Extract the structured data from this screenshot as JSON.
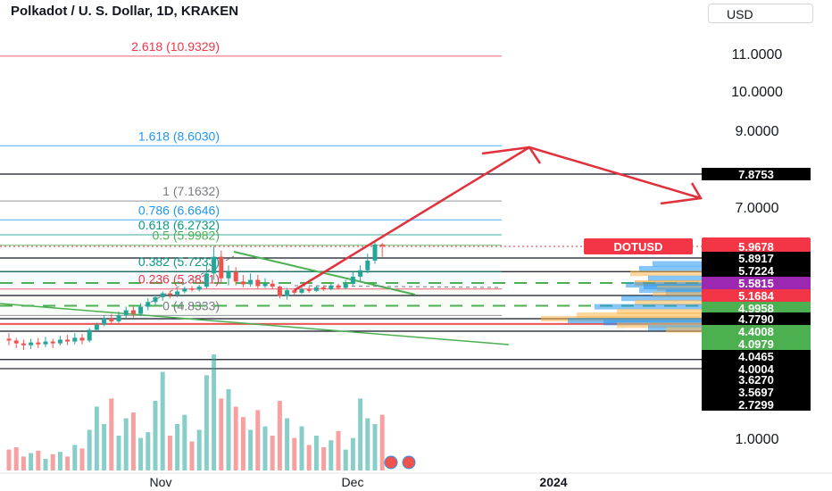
{
  "header": {
    "title": "Polkadot / U. S. Dollar, 1D, KRAKEN",
    "currency_button": "USD"
  },
  "colors": {
    "up": "#26a69a",
    "down": "#ef5350",
    "fib_red": "#f23645",
    "fib_blue": "#2196f3",
    "fib_green": "#089981",
    "fib_gray": "#787b86",
    "trend_green": "#4caf50",
    "arrow_red": "#e0313d"
  },
  "chart_data": {
    "type": "candlestick",
    "symbol": "DOTUSD",
    "price_axis_ticks": [
      "11.0000",
      "10.0000",
      "9.0000",
      "7.0000",
      "1.0000"
    ],
    "time_axis_ticks": [
      "Nov",
      "Dec",
      "2024"
    ],
    "last_price": {
      "label": "DOTUSD",
      "value": "5.9678"
    },
    "fib_levels": [
      {
        "ratio": "2.618",
        "price": "10.9329",
        "label": "2.618 (10.9329)",
        "color": "#f23645"
      },
      {
        "ratio": "1.618",
        "price": "8.6030",
        "label": "1.618 (8.6030)",
        "color": "#2196f3"
      },
      {
        "ratio": "1",
        "price": "7.1632",
        "label": "1 (7.1632)",
        "color": "#787b86"
      },
      {
        "ratio": "0.786",
        "price": "6.6646",
        "label": "0.786 (6.6646)",
        "color": "#2196f3"
      },
      {
        "ratio": "0.618",
        "price": "6.2732",
        "label": "0.618 (6.2732)",
        "color": "#089981"
      },
      {
        "ratio": "0.5",
        "price": "5.9982",
        "label": "0.5 (5.9982)",
        "color": "#4caf50"
      },
      {
        "ratio": "0.382",
        "price": "5.7233",
        "label": "0.382 (5.7233)",
        "color": "#089981"
      },
      {
        "ratio": "0.236",
        "price": "5.3831",
        "label": "0.236 (5.3831)",
        "color": "#f23645"
      },
      {
        "ratio": "0",
        "price": "4.8333",
        "label": "0 (4.8333)",
        "color": "#787b86"
      }
    ],
    "price_tags": [
      {
        "value": "7.8753",
        "bg": "#000000"
      },
      {
        "value": "5.8917",
        "bg": "#000000"
      },
      {
        "value": "5.7224",
        "bg": "#000000"
      },
      {
        "value": "5.5815",
        "bg": "#9c27b0"
      },
      {
        "value": "5.1684",
        "bg": "#f23645"
      },
      {
        "value": "4.9958",
        "bg": "#4caf50"
      },
      {
        "value": "4.7790",
        "bg": "#000000"
      },
      {
        "value": "4.4008",
        "bg": "#4caf50"
      },
      {
        "value": "4.0979",
        "bg": "#4caf50"
      },
      {
        "value": "4.0465",
        "bg": "#000000"
      },
      {
        "value": "4.0004",
        "bg": "#000000"
      },
      {
        "value": "3.6270",
        "bg": "#000000"
      },
      {
        "value": "3.5697",
        "bg": "#000000"
      },
      {
        "value": "2.7299",
        "bg": "#000000"
      }
    ],
    "candles": [
      [
        4.32,
        4.3,
        4.38,
        4.25
      ],
      [
        4.3,
        4.27,
        4.33,
        4.22
      ],
      [
        4.27,
        4.25,
        4.31,
        4.2
      ],
      [
        4.25,
        4.28,
        4.32,
        4.21
      ],
      [
        4.28,
        4.26,
        4.33,
        4.22
      ],
      [
        4.26,
        4.29,
        4.34,
        4.23
      ],
      [
        4.29,
        4.27,
        4.32,
        4.22
      ],
      [
        4.27,
        4.31,
        4.35,
        4.25
      ],
      [
        4.31,
        4.29,
        4.36,
        4.25
      ],
      [
        4.29,
        4.33,
        4.38,
        4.26
      ],
      [
        4.33,
        4.3,
        4.37,
        4.26
      ],
      [
        4.3,
        4.44,
        4.5,
        4.28
      ],
      [
        4.44,
        4.6,
        4.66,
        4.4
      ],
      [
        4.6,
        4.78,
        4.84,
        4.55
      ],
      [
        4.78,
        4.7,
        4.86,
        4.62
      ],
      [
        4.7,
        4.84,
        4.9,
        4.65
      ],
      [
        4.84,
        4.92,
        4.98,
        4.78
      ],
      [
        4.92,
        4.86,
        4.98,
        4.8
      ],
      [
        4.86,
        4.98,
        5.04,
        4.82
      ],
      [
        4.98,
        5.06,
        5.12,
        4.92
      ],
      [
        5.06,
        5.14,
        5.2,
        5.0
      ],
      [
        5.14,
        5.24,
        5.3,
        5.08
      ],
      [
        5.24,
        5.2,
        5.32,
        5.12
      ],
      [
        5.2,
        5.3,
        5.36,
        5.14
      ],
      [
        5.3,
        5.4,
        5.46,
        5.24
      ],
      [
        5.4,
        5.36,
        5.48,
        5.3
      ],
      [
        5.36,
        5.46,
        5.52,
        5.3
      ],
      [
        5.46,
        5.7,
        5.8,
        5.4
      ],
      [
        5.7,
        5.9,
        5.98,
        5.62
      ],
      [
        5.9,
        5.64,
        5.94,
        5.56
      ],
      [
        5.64,
        5.72,
        5.8,
        5.5
      ],
      [
        5.72,
        5.6,
        5.78,
        5.5
      ],
      [
        5.6,
        5.54,
        5.68,
        5.44
      ],
      [
        5.54,
        5.62,
        5.7,
        5.46
      ],
      [
        5.62,
        5.48,
        5.68,
        5.4
      ],
      [
        5.48,
        5.56,
        5.64,
        5.42
      ],
      [
        5.56,
        5.46,
        5.62,
        5.38
      ],
      [
        5.46,
        5.16,
        5.5,
        5.12
      ],
      [
        5.16,
        5.34,
        5.42,
        5.1
      ],
      [
        5.34,
        5.26,
        5.4,
        5.2
      ],
      [
        5.26,
        5.38,
        5.44,
        5.22
      ],
      [
        5.38,
        5.32,
        5.46,
        5.26
      ],
      [
        5.32,
        5.44,
        5.5,
        5.28
      ],
      [
        5.44,
        5.38,
        5.5,
        5.32
      ],
      [
        5.38,
        5.5,
        5.56,
        5.34
      ],
      [
        5.5,
        5.42,
        5.56,
        5.36
      ],
      [
        5.42,
        5.56,
        5.62,
        5.38
      ],
      [
        5.56,
        5.66,
        5.72,
        5.5
      ],
      [
        5.66,
        5.74,
        5.8,
        5.6
      ],
      [
        5.74,
        5.86,
        5.92,
        5.7
      ],
      [
        5.86,
        6.02,
        6.08,
        5.82
      ],
      [
        6.02,
        5.97,
        6.06,
        5.9
      ]
    ],
    "volumes": [
      0.18,
      0.2,
      0.12,
      0.15,
      0.17,
      0.1,
      0.14,
      0.16,
      0.12,
      0.22,
      0.19,
      0.35,
      0.55,
      0.4,
      0.62,
      0.3,
      0.45,
      0.5,
      0.28,
      0.33,
      0.6,
      0.85,
      0.3,
      0.4,
      0.48,
      0.25,
      0.35,
      0.82,
      1.0,
      0.62,
      0.7,
      0.55,
      0.46,
      0.35,
      0.52,
      0.38,
      0.3,
      0.6,
      0.45,
      0.28,
      0.38,
      0.22,
      0.3,
      0.2,
      0.26,
      0.34,
      0.18,
      0.28,
      0.62,
      0.45,
      0.4,
      0.48
    ],
    "annotations": {
      "projection": "arrow up to 8.6030 target then down"
    }
  }
}
